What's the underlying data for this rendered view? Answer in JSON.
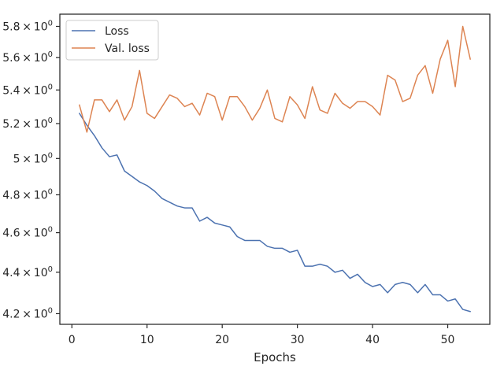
{
  "chart_data": {
    "type": "line",
    "xlabel": "Epochs",
    "ylabel": "",
    "y_scale": "log",
    "xlim": [
      -1.6,
      55.6
    ],
    "ylim": [
      4.15,
      5.88
    ],
    "x_ticks": [
      0,
      10,
      20,
      30,
      40,
      50
    ],
    "x_tick_labels": [
      "0",
      "10",
      "20",
      "30",
      "40",
      "50"
    ],
    "y_ticks": [
      4.2,
      4.4,
      4.6,
      4.8,
      5.0,
      5.2,
      5.4,
      5.6,
      5.8
    ],
    "y_tick_labels": [
      {
        "mantissa": "4.2",
        "base": "10",
        "exp": "0"
      },
      {
        "mantissa": "4.4",
        "base": "10",
        "exp": "0"
      },
      {
        "mantissa": "4.6",
        "base": "10",
        "exp": "0"
      },
      {
        "mantissa": "4.8",
        "base": "10",
        "exp": "0"
      },
      {
        "mantissa": "5",
        "base": "10",
        "exp": "0"
      },
      {
        "mantissa": "5.2",
        "base": "10",
        "exp": "0"
      },
      {
        "mantissa": "5.4",
        "base": "10",
        "exp": "0"
      },
      {
        "mantissa": "5.6",
        "base": "10",
        "exp": "0"
      },
      {
        "mantissa": "5.8",
        "base": "10",
        "exp": "0"
      }
    ],
    "legend_position": "top-left",
    "x": [
      1,
      2,
      3,
      4,
      5,
      6,
      7,
      8,
      9,
      10,
      11,
      12,
      13,
      14,
      15,
      16,
      17,
      18,
      19,
      20,
      21,
      22,
      23,
      24,
      25,
      26,
      27,
      28,
      29,
      30,
      31,
      32,
      33,
      34,
      35,
      36,
      37,
      38,
      39,
      40,
      41,
      42,
      43,
      44,
      45,
      46,
      47,
      48,
      49,
      50,
      51,
      52,
      53
    ],
    "series": [
      {
        "name": "Loss",
        "color": "#4c72b0",
        "values": [
          5.26,
          5.19,
          5.13,
          5.06,
          5.01,
          5.02,
          4.93,
          4.9,
          4.87,
          4.85,
          4.82,
          4.78,
          4.76,
          4.74,
          4.73,
          4.73,
          4.66,
          4.68,
          4.65,
          4.64,
          4.63,
          4.58,
          4.56,
          4.56,
          4.56,
          4.53,
          4.52,
          4.52,
          4.5,
          4.51,
          4.43,
          4.43,
          4.44,
          4.43,
          4.4,
          4.41,
          4.37,
          4.39,
          4.35,
          4.33,
          4.34,
          4.3,
          4.34,
          4.35,
          4.34,
          4.3,
          4.34,
          4.29,
          4.29,
          4.26,
          4.27,
          4.22,
          4.21
        ]
      },
      {
        "name": "Val. loss",
        "color": "#dd8452",
        "values": [
          5.31,
          5.15,
          5.34,
          5.34,
          5.27,
          5.34,
          5.22,
          5.3,
          5.52,
          5.26,
          5.23,
          5.3,
          5.37,
          5.35,
          5.3,
          5.32,
          5.25,
          5.38,
          5.36,
          5.22,
          5.36,
          5.36,
          5.3,
          5.22,
          5.29,
          5.4,
          5.23,
          5.21,
          5.36,
          5.31,
          5.23,
          5.42,
          5.28,
          5.26,
          5.38,
          5.32,
          5.29,
          5.33,
          5.33,
          5.3,
          5.25,
          5.49,
          5.46,
          5.33,
          5.35,
          5.49,
          5.55,
          5.38,
          5.59,
          5.71,
          5.42,
          5.8,
          5.59
        ]
      }
    ]
  }
}
